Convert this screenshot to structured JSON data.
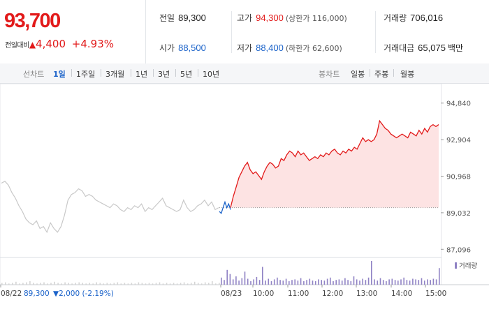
{
  "quote": {
    "price": "93,700",
    "change_label": "전일대비",
    "change_arrow": "▲",
    "change_amount": "4,400",
    "change_pct": "+4.93%"
  },
  "stats": {
    "prev_close_label": "전일",
    "prev_close": "89,300",
    "high_label": "고가",
    "high": "94,300",
    "upper_limit": "(상한가 116,000)",
    "volume_label": "거래량",
    "volume": "706,016",
    "open_label": "시가",
    "open": "88,500",
    "low_label": "저가",
    "low": "88,400",
    "lower_limit": "(하한가 62,600)",
    "value_label": "거래대금",
    "value": "65,075",
    "value_unit": "백만"
  },
  "line_tabs": {
    "label": "선차트",
    "items": [
      "1일",
      "1주일",
      "3개월",
      "1년",
      "3년",
      "5년",
      "10년"
    ],
    "active": 0
  },
  "candle_tabs": {
    "label": "봉차트",
    "items": [
      "일봉",
      "주봉",
      "월봉"
    ]
  },
  "prev_day_info": {
    "date": "08/22",
    "close": "89,300",
    "arrow": "▼",
    "change": "2,000",
    "pct": "(-2.19%)"
  },
  "colors": {
    "up": "#e21a1a",
    "down": "#1a62c9",
    "prev_line": "#c8c8c8",
    "area_fill": "#fde3e3",
    "volume_today": "#8f82c4",
    "volume_prev": "#d4d4d4"
  },
  "chart_data": {
    "type": "line",
    "title": "",
    "ylim": [
      86700,
      95200
    ],
    "y_ticks": [
      "94,840",
      "92,904",
      "90,968",
      "89,032",
      "87,096"
    ],
    "y_tick_values": [
      94840,
      92904,
      90968,
      89032,
      87096
    ],
    "baseline": 89300,
    "x_tick_labels": [
      "08/22",
      "08/23",
      "10:00",
      "11:00",
      "12:00",
      "13:00",
      "14:00",
      "15:00"
    ],
    "volume_label": "거래량",
    "series": [
      {
        "values": [
          90600,
          90700,
          90500,
          90100,
          89800,
          89400,
          89100,
          88700,
          88500,
          88400,
          88600,
          88200,
          88300,
          88000,
          88500,
          88200,
          88000,
          88300,
          88900,
          89700,
          90000,
          90100,
          90300,
          90200,
          89900,
          90000,
          89900,
          89700,
          89600,
          89500,
          89400,
          89300,
          89500,
          89400,
          89200,
          89100,
          89300,
          89200,
          89400,
          89300,
          89500,
          89100,
          89300,
          89200,
          89400,
          89600,
          89800,
          89400,
          89300,
          89200,
          89100,
          89200,
          89700,
          89300,
          89100,
          89200,
          89400,
          89500,
          89700,
          89400,
          89600,
          89200,
          89300
        ]
      },
      {
        "values": [
          89100,
          89000,
          89300,
          89600,
          89300,
          89500,
          89200
        ]
      },
      {
        "values": [
          89300,
          89900,
          90400,
          90900,
          91200,
          91500,
          91700,
          91300,
          91100,
          91200,
          91000,
          90800,
          91200,
          91500,
          91700,
          91600,
          91400,
          91500,
          91900,
          91800,
          92100,
          92300,
          92200,
          92000,
          92300,
          92100,
          92200,
          92000,
          91800,
          91900,
          92000,
          91900,
          92100,
          92000,
          92200,
          92100,
          92300,
          92400,
          92200,
          92100,
          92300,
          92200,
          92400,
          92300,
          92500,
          92400,
          92700,
          93000,
          92800,
          92900,
          92800,
          92900,
          93200,
          93900,
          93700,
          93500,
          93400,
          93200,
          93100,
          93000,
          93100,
          93200,
          93100,
          93000,
          93300,
          93200,
          93100,
          93400,
          93200,
          93500,
          93300,
          93600,
          93700,
          93600,
          93700
        ]
      }
    ],
    "volume_series": [
      {
        "values": [
          3,
          4,
          2,
          3,
          5,
          2,
          3,
          4,
          6,
          3,
          2,
          3,
          4,
          2,
          3,
          5,
          3,
          2,
          4,
          3,
          2,
          3,
          4,
          3,
          2,
          3,
          2,
          4,
          3,
          2,
          3,
          2,
          3,
          4,
          2,
          3,
          2,
          3,
          2,
          4,
          3,
          2,
          3,
          2,
          3,
          4,
          2,
          3,
          2,
          3,
          2,
          3,
          4,
          2,
          3,
          5,
          3,
          2,
          4,
          3,
          6,
          2,
          3
        ]
      },
      {
        "values": [
          12,
          8,
          25,
          18,
          9,
          14,
          7,
          11,
          22,
          10,
          6,
          9,
          13,
          8,
          30,
          7,
          10,
          6,
          9,
          12,
          8,
          7,
          10,
          6,
          8,
          9,
          7,
          11,
          6,
          8,
          10,
          7,
          6,
          9,
          8,
          7,
          10,
          12,
          6,
          8,
          9,
          7,
          11,
          8,
          6,
          14,
          9,
          7,
          10,
          8,
          12,
          40,
          9,
          7,
          11,
          8,
          6,
          9,
          10,
          8,
          7,
          9,
          12,
          8,
          7,
          10,
          9,
          8,
          11,
          7,
          9,
          8,
          10,
          9,
          28
        ]
      }
    ]
  }
}
